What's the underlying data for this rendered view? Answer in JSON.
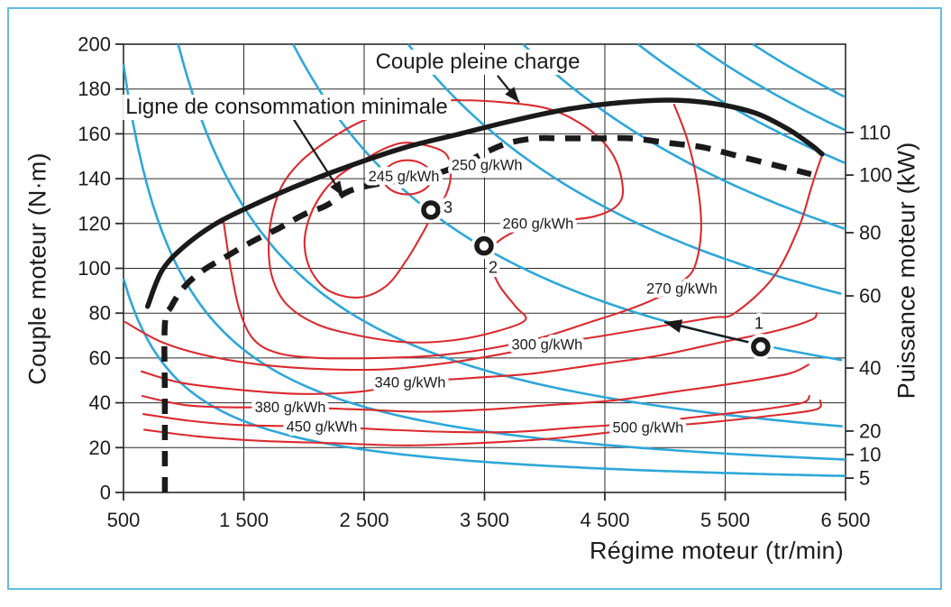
{
  "figure": {
    "frame_color": "#63bde2",
    "background": "#ffffff",
    "colors": {
      "contour_red": "#d92b2f",
      "power_blue": "#2ea7d8",
      "curve_black": "#1a1a1a",
      "grid": "#2a2a2a"
    }
  },
  "chart_data": {
    "type": "line",
    "title": "",
    "xlabel": "Régime moteur (tr/min)",
    "ylabel_left": "Couple moteur (N·m)",
    "ylabel_right": "Puissance moteur (kW)",
    "x_range": [
      500,
      6500
    ],
    "y_range": [
      0,
      200
    ],
    "x_ticks": [
      {
        "v": 500,
        "label": "500"
      },
      {
        "v": 1500,
        "label": "1 500"
      },
      {
        "v": 2500,
        "label": "2 500"
      },
      {
        "v": 3500,
        "label": "3 500"
      },
      {
        "v": 4500,
        "label": "4 500"
      },
      {
        "v": 5500,
        "label": "5 500"
      },
      {
        "v": 6500,
        "label": "6 500"
      }
    ],
    "y_left_ticks": [
      {
        "v": 0,
        "label": "0"
      },
      {
        "v": 20,
        "label": "20"
      },
      {
        "v": 40,
        "label": "40"
      },
      {
        "v": 60,
        "label": "60"
      },
      {
        "v": 80,
        "label": "80"
      },
      {
        "v": 100,
        "label": "100"
      },
      {
        "v": 120,
        "label": "120"
      },
      {
        "v": 140,
        "label": "140"
      },
      {
        "v": 160,
        "label": "160"
      },
      {
        "v": 180,
        "label": "180"
      },
      {
        "v": 200,
        "label": "200"
      }
    ],
    "y_right_ticks": [
      {
        "kw": 110,
        "label": "110",
        "t_pos": 160.6
      },
      {
        "kw": 100,
        "label": "100",
        "t_pos": 141.6
      },
      {
        "kw": 80,
        "label": "80",
        "t_pos": 115.9
      },
      {
        "kw": 60,
        "label": "60",
        "t_pos": 87.7
      },
      {
        "kw": 40,
        "label": "40",
        "t_pos": 55.5
      },
      {
        "kw": 20,
        "label": "20",
        "t_pos": 27.4
      },
      {
        "kw": 10,
        "label": "10",
        "t_pos": 16.9
      },
      {
        "kw": 5,
        "label": "5",
        "t_pos": 6.4
      }
    ],
    "grid_x": [
      1500,
      2500,
      3500,
      4500,
      5500
    ],
    "grid_y": [
      20,
      40,
      60,
      80,
      100,
      120,
      140,
      160,
      180,
      200
    ],
    "iso_power_curves_kw": [
      5,
      10,
      20,
      40,
      60,
      80,
      100,
      110,
      120
    ],
    "power_torque_constant": 9550,
    "full_load_curve": {
      "label": "Couple pleine charge",
      "points": [
        [
          700,
          83
        ],
        [
          820,
          99
        ],
        [
          1010,
          110
        ],
        [
          1270,
          120
        ],
        [
          1570,
          128
        ],
        [
          1950,
          137
        ],
        [
          2395,
          146
        ],
        [
          2845,
          154
        ],
        [
          3295,
          160
        ],
        [
          3745,
          166
        ],
        [
          4190,
          171
        ],
        [
          4640,
          174
        ],
        [
          5090,
          175
        ],
        [
          5465,
          173
        ],
        [
          5765,
          169
        ],
        [
          6025,
          162
        ],
        [
          6215,
          155
        ],
        [
          6305,
          151
        ]
      ]
    },
    "min_consumption_line": {
      "label": "Ligne de consommation minimale",
      "points": [
        [
          844,
          0
        ],
        [
          844,
          40
        ],
        [
          844,
          75
        ],
        [
          897,
          83
        ],
        [
          1009,
          92
        ],
        [
          1159,
          99
        ],
        [
          1346,
          105
        ],
        [
          1571,
          112
        ],
        [
          1796,
          118
        ],
        [
          1998,
          124
        ],
        [
          2185,
          128
        ],
        [
          2357,
          134
        ],
        [
          2545,
          137
        ],
        [
          2769,
          139
        ],
        [
          2957,
          141
        ],
        [
          3144,
          143
        ],
        [
          3331,
          147
        ],
        [
          3518,
          152
        ],
        [
          3706,
          156
        ],
        [
          3930,
          158
        ],
        [
          4155,
          158
        ],
        [
          4417,
          158
        ],
        [
          4717,
          158
        ],
        [
          5016,
          156
        ],
        [
          5316,
          154
        ],
        [
          5615,
          150
        ],
        [
          5915,
          146
        ],
        [
          6214,
          142
        ]
      ]
    },
    "consumption_contours": [
      {
        "value": 245,
        "label": "245 g/kWh",
        "label_at": [
          2830,
          141
        ],
        "closed": true,
        "points": [
          [
            3061,
            140.6
          ],
          [
            3034,
            144.4
          ],
          [
            2960,
            147.2
          ],
          [
            2859,
            148.2
          ],
          [
            2758,
            147.2
          ],
          [
            2684,
            144.4
          ],
          [
            2657,
            140.6
          ],
          [
            2684,
            136.8
          ],
          [
            2758,
            134.0
          ],
          [
            2859,
            133.0
          ],
          [
            2960,
            134.0
          ],
          [
            3034,
            136.8
          ]
        ]
      },
      {
        "value": 250,
        "label": "250 g/kWh",
        "label_at": [
          3520,
          146
        ],
        "closed": true,
        "points": [
          [
            2882,
            156
          ],
          [
            3159,
            152
          ],
          [
            3219,
            143
          ],
          [
            3181,
            133
          ],
          [
            3069,
            124
          ],
          [
            2979,
            115
          ],
          [
            2844,
            103
          ],
          [
            2680,
            92
          ],
          [
            2455,
            87
          ],
          [
            2208,
            90
          ],
          [
            2058,
            99
          ],
          [
            2005,
            110
          ],
          [
            2035,
            121
          ],
          [
            2133,
            132
          ],
          [
            2283,
            141
          ],
          [
            2485,
            148
          ],
          [
            2694,
            154
          ]
        ]
      },
      {
        "value": 260,
        "label": "260 g/kWh",
        "label_at": [
          3945,
          120
        ],
        "closed": true,
        "points": [
          [
            3294,
            175
          ],
          [
            3668,
            174
          ],
          [
            4043,
            171
          ],
          [
            4342,
            163
          ],
          [
            4552,
            152
          ],
          [
            4642,
            139
          ],
          [
            4619,
            129
          ],
          [
            4402,
            123
          ],
          [
            3945,
            120
          ],
          [
            3638,
            113
          ],
          [
            3541,
            105
          ],
          [
            3616,
            93
          ],
          [
            3758,
            83
          ],
          [
            3840,
            77
          ],
          [
            3608,
            72
          ],
          [
            3256,
            68
          ],
          [
            2859,
            67
          ],
          [
            2455,
            70
          ],
          [
            2110,
            75
          ],
          [
            1856,
            84
          ],
          [
            1736,
            96
          ],
          [
            1706,
            110
          ],
          [
            1736,
            124
          ],
          [
            1818,
            137
          ],
          [
            1961,
            147
          ],
          [
            2170,
            156
          ],
          [
            2455,
            165
          ],
          [
            2769,
            171
          ],
          [
            3031,
            174
          ]
        ]
      },
      {
        "value": 270,
        "label": "270 g/kWh",
        "label_at": [
          5140,
          91
        ],
        "closed": false,
        "points": [
          [
            1331,
            121
          ],
          [
            1391,
            100
          ],
          [
            1466,
            81
          ],
          [
            1586,
            68
          ],
          [
            1796,
            62
          ],
          [
            2133,
            60
          ],
          [
            2620,
            60
          ],
          [
            3069,
            61
          ],
          [
            3518,
            64
          ],
          [
            3967,
            69
          ],
          [
            4379,
            76
          ],
          [
            4717,
            82
          ],
          [
            4979,
            88
          ],
          [
            5143,
            94
          ],
          [
            5248,
            101
          ],
          [
            5300,
            117
          ],
          [
            5271,
            137
          ],
          [
            5188,
            157
          ],
          [
            5076,
            173
          ]
        ]
      },
      {
        "value": 300,
        "label": "300 g/kWh",
        "label_at": [
          4020,
          66
        ],
        "closed": false,
        "points": [
          [
            515,
            76
          ],
          [
            822,
            67
          ],
          [
            1196,
            61
          ],
          [
            1646,
            57
          ],
          [
            2170,
            55
          ],
          [
            2694,
            55
          ],
          [
            3219,
            58
          ],
          [
            3668,
            62
          ],
          [
            4020,
            66
          ],
          [
            4492,
            70
          ],
          [
            4941,
            74
          ],
          [
            5390,
            78
          ],
          [
            5578,
            80
          ],
          [
            5900,
            96
          ],
          [
            6110,
            118
          ],
          [
            6215,
            136
          ],
          [
            6282,
            147
          ],
          [
            6312,
            151
          ]
        ]
      },
      {
        "value": 340,
        "label": "340 g/kWh",
        "label_at": [
          2882,
          49
        ],
        "closed": false,
        "points": [
          [
            650,
            54
          ],
          [
            972,
            49
          ],
          [
            1421,
            46
          ],
          [
            1946,
            44
          ],
          [
            2470,
            45
          ],
          [
            2882,
            49
          ],
          [
            3369,
            51
          ],
          [
            3893,
            53
          ],
          [
            4417,
            57
          ],
          [
            4941,
            61
          ],
          [
            5466,
            67
          ],
          [
            5915,
            72
          ],
          [
            6215,
            77
          ],
          [
            6260,
            80
          ]
        ]
      },
      {
        "value": 380,
        "label": "380 g/kWh",
        "label_at": [
          1886,
          38
        ],
        "closed": false,
        "points": [
          [
            657,
            43
          ],
          [
            1009,
            39
          ],
          [
            1384,
            38
          ],
          [
            1886,
            38
          ],
          [
            2470,
            37
          ],
          [
            2994,
            36
          ],
          [
            3518,
            37
          ],
          [
            4043,
            39
          ],
          [
            4567,
            41
          ],
          [
            5091,
            45
          ],
          [
            5615,
            49
          ],
          [
            6027,
            53
          ],
          [
            6192,
            57
          ]
        ]
      },
      {
        "value": 450,
        "label": "450 g/kWh",
        "label_at": [
          2148,
          29.4
        ],
        "closed": false,
        "points": [
          [
            665,
            35
          ],
          [
            1047,
            32
          ],
          [
            1496,
            30
          ],
          [
            2148,
            29.4
          ],
          [
            2694,
            28
          ],
          [
            3219,
            27
          ],
          [
            3743,
            27
          ],
          [
            4267,
            29
          ],
          [
            4792,
            31
          ],
          [
            5316,
            34
          ],
          [
            5803,
            37
          ],
          [
            6140,
            40
          ],
          [
            6200,
            43
          ]
        ]
      },
      {
        "value": 500,
        "label": "500 g/kWh",
        "label_at": [
          4859,
          29
        ],
        "closed": false,
        "points": [
          [
            672,
            28
          ],
          [
            1122,
            25
          ],
          [
            1646,
            23
          ],
          [
            2245,
            22
          ],
          [
            2844,
            21
          ],
          [
            3443,
            22
          ],
          [
            4043,
            24
          ],
          [
            4567,
            27
          ],
          [
            4859,
            29
          ],
          [
            5316,
            31
          ],
          [
            5840,
            34
          ],
          [
            6252,
            37
          ],
          [
            6290,
            41
          ]
        ]
      }
    ],
    "operating_points": [
      {
        "name": "1",
        "rpm": 5795,
        "nm": 65,
        "label_offset": [
          -2,
          -26
        ]
      },
      {
        "name": "2",
        "rpm": 3496,
        "nm": 110,
        "label_offset": [
          10,
          24
        ]
      },
      {
        "name": "3",
        "rpm": 3054,
        "nm": 126,
        "label_offset": [
          19,
          -3
        ]
      }
    ],
    "trajectory_arrow": {
      "tail": [
        5698,
        67
      ],
      "tip": [
        4994,
        76
      ]
    },
    "annotations": {
      "full_load": {
        "text": "Couple pleine charge",
        "text_at": [
          3443,
          192
        ],
        "arrow_tail": [
          3608,
          186
        ],
        "arrow_tip": [
          3788,
          174
        ]
      },
      "min_line": {
        "text": "Ligne de consommation minimale",
        "text_at": [
          1856,
          172
        ],
        "arrow_tail": [
          1908,
          167
        ],
        "arrow_tip": [
          2327,
          132
        ]
      }
    },
    "legend_position": "none",
    "grid": true
  }
}
